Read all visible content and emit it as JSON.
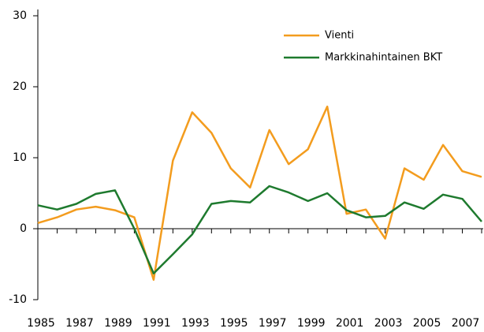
{
  "chart_data": {
    "type": "line",
    "x": [
      1985,
      1986,
      1987,
      1988,
      1989,
      1990,
      1991,
      1992,
      1993,
      1994,
      1995,
      1996,
      1997,
      1998,
      1999,
      2000,
      2001,
      2002,
      2003,
      2004,
      2005,
      2006,
      2007,
      2008
    ],
    "series": [
      {
        "name": "Vienti",
        "color": "#f39c1e",
        "values": [
          0.8,
          1.6,
          2.7,
          3.1,
          2.6,
          1.6,
          -7.2,
          9.6,
          16.4,
          13.5,
          8.5,
          5.8,
          13.9,
          9.1,
          11.2,
          17.2,
          2.1,
          2.7,
          -1.4,
          8.5,
          6.9,
          11.8,
          8.1,
          7.3
        ]
      },
      {
        "name": "Markkinahintainen BKT",
        "color": "#1e7a2e",
        "values": [
          3.3,
          2.7,
          3.5,
          4.9,
          5.4,
          0.0,
          -6.3,
          -3.6,
          -0.8,
          3.5,
          3.9,
          3.7,
          6.0,
          5.1,
          3.9,
          5.0,
          2.6,
          1.6,
          1.8,
          3.7,
          2.8,
          4.8,
          4.2,
          1.0
        ]
      }
    ],
    "xlim": [
      1985,
      2008
    ],
    "xticks": [
      1985,
      1987,
      1989,
      1991,
      1993,
      1995,
      1997,
      1999,
      2001,
      2003,
      2005,
      2007
    ],
    "xminorticks": [
      1986,
      1988,
      1990,
      1992,
      1994,
      1996,
      1998,
      2000,
      2002,
      2004,
      2006,
      2008
    ],
    "ylim": [
      -10,
      30
    ],
    "yticks": [
      -10,
      0,
      10,
      20,
      30
    ],
    "legend": "upper right"
  }
}
